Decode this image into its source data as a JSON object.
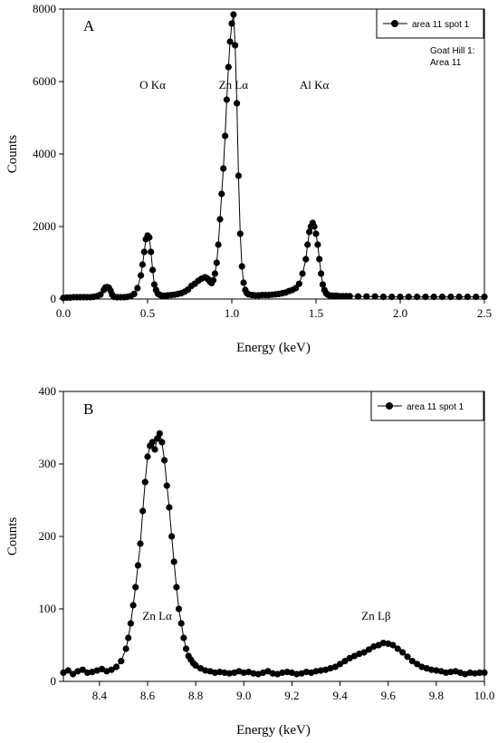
{
  "chart_data": [
    {
      "type": "line",
      "panel_label": "A",
      "xlabel": "Energy (keV)",
      "ylabel": "Counts",
      "xlim": [
        0,
        2.5
      ],
      "ylim": [
        0,
        8000
      ],
      "xticks": [
        0.0,
        0.5,
        1.0,
        1.5,
        2.0,
        2.5
      ],
      "xtick_labels": [
        "0.0",
        "0.5",
        "1.0",
        "1.5",
        "2.0",
        "2.5"
      ],
      "yticks": [
        0,
        2000,
        4000,
        6000,
        8000
      ],
      "ytick_labels": [
        "0",
        "2000",
        "4000",
        "6000",
        "8000"
      ],
      "legend": {
        "placement": "top-right",
        "entries": [
          "area 11 spot 1"
        ]
      },
      "annotations": [
        {
          "text": "O Kα",
          "x": 0.53,
          "y": 5800
        },
        {
          "text": "Zn Lα",
          "x": 1.01,
          "y": 5800
        },
        {
          "text": "Al Kα",
          "x": 1.49,
          "y": 5800
        }
      ],
      "note": [
        "Goat Hill 1:",
        "Area 11"
      ],
      "series": [
        {
          "name": "area 11 spot 1",
          "x": [
            0.0,
            0.02,
            0.04,
            0.06,
            0.08,
            0.1,
            0.12,
            0.14,
            0.16,
            0.18,
            0.2,
            0.22,
            0.24,
            0.25,
            0.26,
            0.27,
            0.28,
            0.29,
            0.3,
            0.32,
            0.34,
            0.36,
            0.38,
            0.4,
            0.42,
            0.44,
            0.46,
            0.47,
            0.48,
            0.49,
            0.5,
            0.51,
            0.52,
            0.53,
            0.54,
            0.55,
            0.56,
            0.57,
            0.58,
            0.6,
            0.62,
            0.64,
            0.66,
            0.68,
            0.7,
            0.72,
            0.74,
            0.76,
            0.78,
            0.8,
            0.82,
            0.84,
            0.85,
            0.86,
            0.87,
            0.88,
            0.89,
            0.9,
            0.91,
            0.92,
            0.93,
            0.94,
            0.95,
            0.96,
            0.97,
            0.98,
            0.99,
            1.0,
            1.01,
            1.02,
            1.03,
            1.04,
            1.05,
            1.06,
            1.07,
            1.08,
            1.09,
            1.1,
            1.12,
            1.14,
            1.16,
            1.18,
            1.2,
            1.22,
            1.24,
            1.26,
            1.28,
            1.3,
            1.32,
            1.34,
            1.36,
            1.38,
            1.4,
            1.42,
            1.44,
            1.45,
            1.46,
            1.47,
            1.48,
            1.49,
            1.5,
            1.51,
            1.52,
            1.53,
            1.54,
            1.55,
            1.56,
            1.57,
            1.58,
            1.6,
            1.62,
            1.64,
            1.66,
            1.68,
            1.7,
            1.75,
            1.8,
            1.85,
            1.9,
            1.95,
            2.0,
            2.05,
            2.1,
            2.15,
            2.2,
            2.25,
            2.3,
            2.35,
            2.4,
            2.45,
            2.5
          ],
          "y": [
            30,
            40,
            40,
            50,
            50,
            50,
            50,
            50,
            50,
            60,
            80,
            120,
            250,
            320,
            330,
            310,
            230,
            120,
            60,
            50,
            50,
            50,
            60,
            80,
            140,
            300,
            650,
            950,
            1300,
            1650,
            1750,
            1700,
            1300,
            800,
            400,
            250,
            150,
            120,
            100,
            90,
            100,
            110,
            120,
            140,
            160,
            200,
            260,
            360,
            420,
            500,
            560,
            600,
            580,
            540,
            480,
            440,
            520,
            700,
            1000,
            1500,
            2200,
            2900,
            3600,
            4500,
            5500,
            6400,
            7100,
            7600,
            7850,
            7000,
            5400,
            3400,
            1800,
            900,
            450,
            250,
            160,
            130,
            110,
            100,
            100,
            110,
            110,
            110,
            120,
            130,
            140,
            160,
            180,
            220,
            250,
            300,
            420,
            700,
            1100,
            1500,
            1850,
            2000,
            2100,
            2000,
            1800,
            1500,
            1100,
            700,
            400,
            250,
            160,
            120,
            100,
            90,
            90,
            80,
            80,
            80,
            80,
            70,
            70,
            70,
            60,
            60,
            60,
            60,
            60,
            60,
            60,
            60,
            60,
            60,
            60,
            60,
            60
          ]
        }
      ]
    },
    {
      "type": "line",
      "panel_label": "B",
      "xlabel": "Energy (keV)",
      "ylabel": "Counts",
      "xlim": [
        8.25,
        10.0
      ],
      "ylim": [
        0,
        400
      ],
      "xticks": [
        8.4,
        8.6,
        8.8,
        9.0,
        9.2,
        9.4,
        9.6,
        9.8,
        10.0
      ],
      "xtick_labels": [
        "8.4",
        "8.6",
        "8.8",
        "9.0",
        "9.2",
        "9.4",
        "9.6",
        "9.8",
        "10.0"
      ],
      "yticks": [
        0,
        100,
        200,
        300,
        400
      ],
      "ytick_labels": [
        "0",
        "100",
        "200",
        "300",
        "400"
      ],
      "legend": {
        "placement": "top-right",
        "entries": [
          "area 11 spot 1"
        ]
      },
      "annotations": [
        {
          "text": "Zn Lα",
          "x": 8.64,
          "y": 85
        },
        {
          "text": "Zn Lβ",
          "x": 9.55,
          "y": 85
        }
      ],
      "series": [
        {
          "name": "area 11 spot 1",
          "x": [
            8.25,
            8.27,
            8.29,
            8.31,
            8.33,
            8.35,
            8.37,
            8.39,
            8.41,
            8.43,
            8.45,
            8.47,
            8.49,
            8.51,
            8.52,
            8.53,
            8.54,
            8.55,
            8.56,
            8.57,
            8.58,
            8.59,
            8.6,
            8.61,
            8.62,
            8.63,
            8.64,
            8.65,
            8.66,
            8.67,
            8.68,
            8.69,
            8.7,
            8.71,
            8.72,
            8.73,
            8.74,
            8.75,
            8.76,
            8.77,
            8.78,
            8.79,
            8.8,
            8.82,
            8.84,
            8.86,
            8.88,
            8.9,
            8.92,
            8.94,
            8.96,
            8.98,
            9.0,
            9.02,
            9.04,
            9.06,
            9.08,
            9.1,
            9.12,
            9.14,
            9.16,
            9.18,
            9.2,
            9.22,
            9.24,
            9.26,
            9.28,
            9.3,
            9.32,
            9.34,
            9.36,
            9.38,
            9.4,
            9.42,
            9.44,
            9.46,
            9.48,
            9.5,
            9.52,
            9.54,
            9.56,
            9.58,
            9.6,
            9.62,
            9.64,
            9.66,
            9.68,
            9.7,
            9.72,
            9.74,
            9.76,
            9.78,
            9.8,
            9.82,
            9.84,
            9.86,
            9.88,
            9.9,
            9.92,
            9.94,
            9.96,
            9.98,
            10.0
          ],
          "y": [
            12,
            15,
            10,
            14,
            16,
            12,
            13,
            15,
            17,
            14,
            16,
            20,
            28,
            45,
            60,
            80,
            105,
            130,
            160,
            190,
            235,
            275,
            310,
            325,
            330,
            320,
            335,
            342,
            330,
            305,
            270,
            240,
            200,
            165,
            130,
            100,
            80,
            60,
            45,
            35,
            30,
            25,
            22,
            18,
            15,
            14,
            12,
            13,
            12,
            11,
            12,
            14,
            12,
            13,
            11,
            10,
            12,
            14,
            11,
            10,
            12,
            13,
            12,
            10,
            11,
            13,
            12,
            14,
            15,
            16,
            18,
            20,
            24,
            28,
            32,
            35,
            38,
            40,
            44,
            48,
            50,
            53,
            52,
            50,
            45,
            40,
            34,
            28,
            24,
            20,
            18,
            16,
            15,
            14,
            12,
            13,
            14,
            12,
            10,
            12,
            11,
            12,
            12
          ]
        }
      ]
    }
  ]
}
